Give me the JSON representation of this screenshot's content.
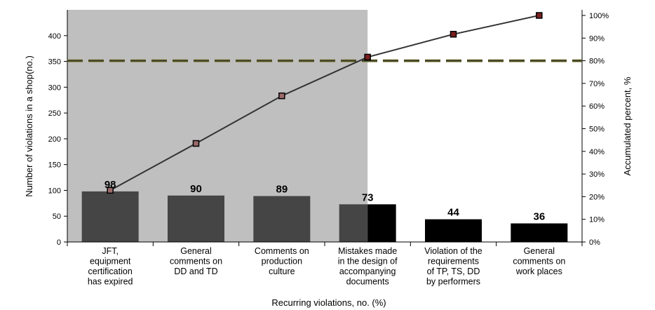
{
  "chart_data": {
    "type": "bar",
    "title": "",
    "xlabel": "Recurring violations, no. (%)",
    "ylabel": "Number of violations in a shop(no.)",
    "y2label": "Accumulated percent, %",
    "ylim": [
      0,
      450
    ],
    "yticks": [
      0,
      50,
      100,
      150,
      200,
      250,
      300,
      350,
      400
    ],
    "y2lim": [
      0,
      100
    ],
    "y2ticks": [
      "0%",
      "10%",
      "20%",
      "30%",
      "40%",
      "50%",
      "60%",
      "70%",
      "80%",
      "90%",
      "100%"
    ],
    "categories": [
      [
        "JFT,",
        "equipment",
        "certification",
        "has expired"
      ],
      [
        "General",
        "comments on",
        "DD and TD"
      ],
      [
        "Comments on",
        "production",
        "culture"
      ],
      [
        "Mistakes made",
        "in the design of",
        "accompanying",
        "documents"
      ],
      [
        "Violation of the",
        "requirements",
        "of TP, TS, DD",
        "by performers"
      ],
      [
        "General",
        "comments on",
        "work places"
      ]
    ],
    "series": [
      {
        "type": "bar",
        "values": [
          98,
          90,
          89,
          73,
          44,
          36
        ]
      },
      {
        "type": "line",
        "axis": "secondary",
        "values": [
          22.8,
          43.5,
          64.5,
          81.6,
          91.7,
          100
        ]
      }
    ],
    "data_labels": [
      "98",
      "90",
      "89",
      "73",
      "44",
      "36"
    ],
    "reference_line": {
      "axis": "secondary",
      "value": 80,
      "style": "dashed"
    },
    "shaded_region": {
      "from_category": 0,
      "to_category": 3.5,
      "color": "#bfbfbf"
    },
    "grid": false,
    "legend": "none"
  },
  "colors": {
    "shade": "#bfbfbf",
    "bar_in_shade": "#454545",
    "bar": "#000000",
    "line": "#333333",
    "marker_fill": "#9c6a6a",
    "marker_fill_outside": "#7a1f1f",
    "dash_dark": "#2f3a26",
    "dash_light": "#8d7f3c"
  }
}
